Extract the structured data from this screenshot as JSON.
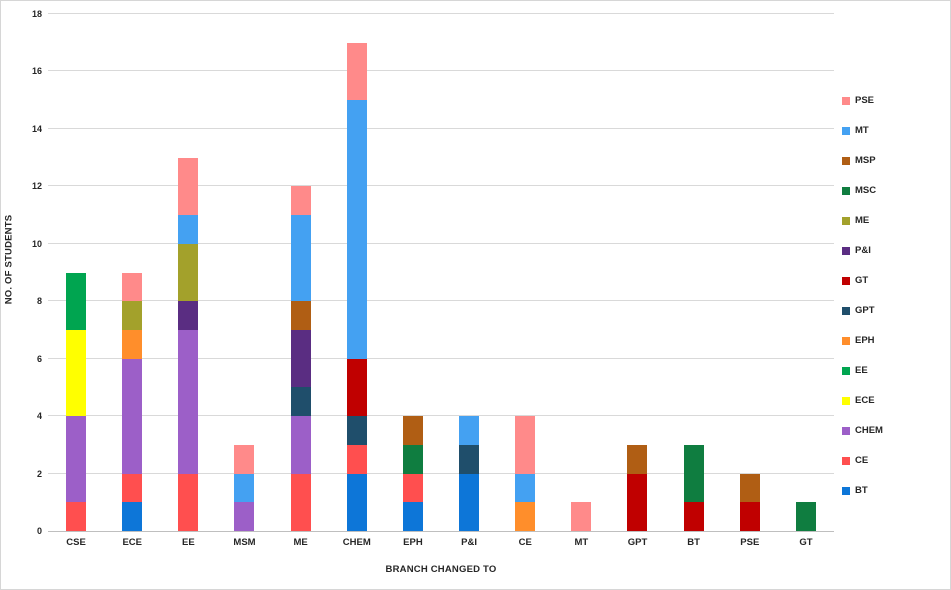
{
  "chart_data": {
    "type": "bar",
    "stacked": true,
    "title": "",
    "xlabel": "BRANCH CHANGED TO",
    "ylabel": "NO. OF STUDENTS",
    "ylim": [
      0,
      18
    ],
    "yticks": [
      0,
      2,
      4,
      6,
      8,
      10,
      12,
      14,
      16,
      18
    ],
    "grid": true,
    "legend_position": "right",
    "categories": [
      "CSE",
      "ECE",
      "EE",
      "MSM",
      "ME",
      "CHEM",
      "EPH",
      "P&I",
      "CE",
      "MT",
      "GPT",
      "BT",
      "PSE",
      "GT"
    ],
    "series": [
      {
        "name": "BT",
        "color": "#0d76d8",
        "values": [
          0,
          1,
          0,
          0,
          0,
          2,
          1,
          2,
          0,
          0,
          0,
          0,
          0,
          0
        ]
      },
      {
        "name": "CE",
        "color": "#ff4f4f",
        "values": [
          1,
          1,
          2,
          0,
          2,
          1,
          1,
          0,
          0,
          0,
          0,
          0,
          0,
          0
        ]
      },
      {
        "name": "CHEM",
        "color": "#9c5fc8",
        "values": [
          3,
          4,
          5,
          1,
          2,
          0,
          0,
          0,
          0,
          0,
          0,
          0,
          0,
          0
        ]
      },
      {
        "name": "ECE",
        "color": "#ffff00",
        "values": [
          3,
          0,
          0,
          0,
          0,
          0,
          0,
          0,
          0,
          0,
          0,
          0,
          0,
          0
        ]
      },
      {
        "name": "EE",
        "color": "#00a550",
        "values": [
          2,
          0,
          0,
          0,
          0,
          0,
          0,
          0,
          0,
          0,
          0,
          0,
          0,
          0
        ]
      },
      {
        "name": "EPH",
        "color": "#ff8e2b",
        "values": [
          0,
          1,
          0,
          0,
          0,
          0,
          0,
          0,
          1,
          0,
          0,
          0,
          0,
          0
        ]
      },
      {
        "name": "GPT",
        "color": "#1f4e6b",
        "values": [
          0,
          0,
          0,
          0,
          1,
          1,
          0,
          1,
          0,
          0,
          0,
          0,
          0,
          0
        ]
      },
      {
        "name": "GT",
        "color": "#c00000",
        "values": [
          0,
          0,
          0,
          0,
          0,
          2,
          0,
          0,
          0,
          0,
          2,
          1,
          1,
          0
        ]
      },
      {
        "name": "P&I",
        "color": "#5a2d82",
        "values": [
          0,
          0,
          1,
          0,
          2,
          0,
          0,
          0,
          0,
          0,
          0,
          0,
          0,
          0
        ]
      },
      {
        "name": "ME",
        "color": "#a3a12b",
        "values": [
          0,
          1,
          2,
          0,
          0,
          0,
          0,
          0,
          0,
          0,
          0,
          0,
          0,
          0
        ]
      },
      {
        "name": "MSC",
        "color": "#0f7d40",
        "values": [
          0,
          0,
          0,
          0,
          0,
          0,
          1,
          0,
          0,
          0,
          0,
          2,
          0,
          1
        ]
      },
      {
        "name": "MSP",
        "color": "#b05e14",
        "values": [
          0,
          0,
          0,
          0,
          1,
          0,
          1,
          0,
          0,
          0,
          1,
          0,
          1,
          0
        ]
      },
      {
        "name": "MT",
        "color": "#44a1f2",
        "values": [
          0,
          0,
          1,
          1,
          3,
          9,
          0,
          1,
          1,
          0,
          0,
          0,
          0,
          0
        ]
      },
      {
        "name": "PSE",
        "color": "#ff8a8a",
        "values": [
          0,
          1,
          2,
          1,
          1,
          2,
          0,
          0,
          2,
          1,
          0,
          0,
          0,
          0
        ]
      }
    ],
    "legend": [
      "PSE",
      "MT",
      "MSP",
      "MSC",
      "ME",
      "P&I",
      "GT",
      "GPT",
      "EPH",
      "EE",
      "ECE",
      "CHEM",
      "CE",
      "BT"
    ]
  }
}
